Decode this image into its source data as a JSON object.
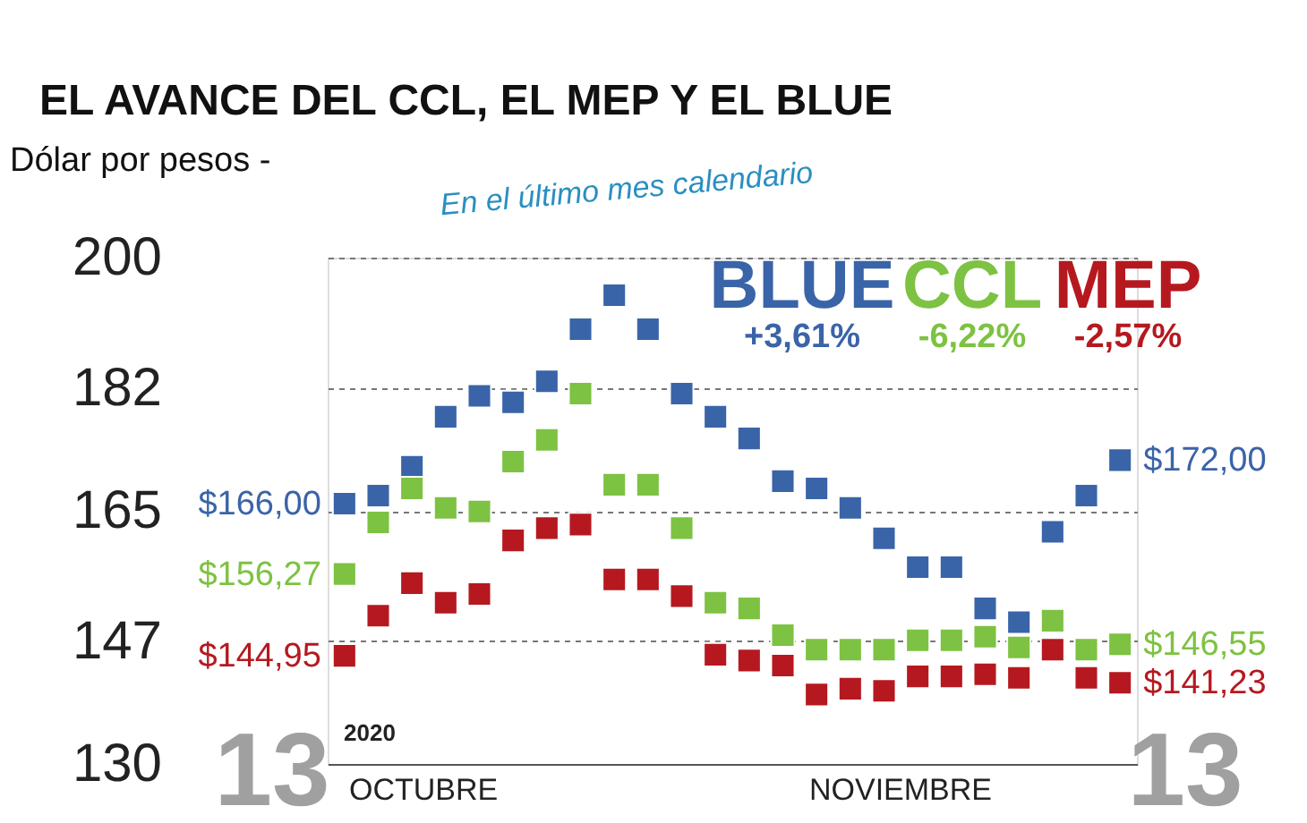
{
  "chart_data": {
    "type": "scatter",
    "title": "EL AVANCE DEL CCL, EL MEP Y EL BLUE",
    "ylabel": "Dólar por pesos -",
    "categories": [
      null,
      null,
      null,
      null,
      null,
      null,
      null,
      null,
      null,
      null,
      null,
      null,
      null,
      null,
      null,
      null,
      null,
      null,
      null,
      null,
      null,
      null,
      null,
      null
    ],
    "series": [
      {
        "name": "BLUE",
        "color": "#3a64a8",
        "values": [
          166.0,
          167.1,
          171.1,
          178.0,
          180.9,
          180.0,
          182.9,
          190.1,
          194.8,
          190.1,
          181.2,
          178.0,
          175.0,
          169.1,
          168.1,
          165.4,
          161.2,
          157.2,
          157.2,
          151.5,
          149.6,
          162.1,
          167.1,
          172.0
        ],
        "value_labels": [
          "$166,00",
          null,
          null,
          null,
          null,
          null,
          null,
          null,
          null,
          null,
          null,
          null,
          null,
          null,
          null,
          null,
          null,
          null,
          null,
          null,
          null,
          null,
          null,
          "$172,00"
        ]
      },
      {
        "name": "CCL",
        "color": "#7dc242",
        "values": [
          156.27,
          163.4,
          168.1,
          165.4,
          164.9,
          171.8,
          174.8,
          181.2,
          168.6,
          168.6,
          162.6,
          152.3,
          151.5,
          147.8,
          145.8,
          145.8,
          145.8,
          147.1,
          147.1,
          147.6,
          146.1,
          149.8,
          145.8,
          146.55
        ],
        "value_labels": [
          "$156,27",
          null,
          null,
          null,
          null,
          null,
          null,
          null,
          null,
          null,
          null,
          null,
          null,
          null,
          null,
          null,
          null,
          null,
          null,
          null,
          null,
          null,
          null,
          "$146,55"
        ]
      },
      {
        "name": "MEP",
        "color": "#b5191f",
        "values": [
          144.95,
          150.5,
          155.0,
          152.3,
          153.5,
          160.9,
          162.6,
          163.1,
          155.5,
          155.5,
          153.2,
          145.1,
          144.3,
          143.6,
          139.6,
          140.4,
          140.1,
          142.1,
          142.1,
          142.4,
          141.9,
          145.8,
          141.9,
          141.23
        ],
        "value_labels": [
          "$144,95",
          null,
          null,
          null,
          null,
          null,
          null,
          null,
          null,
          null,
          null,
          null,
          null,
          null,
          null,
          null,
          null,
          null,
          null,
          null,
          null,
          null,
          null,
          "$141,23"
        ]
      }
    ],
    "ylim": [
      130,
      200
    ],
    "yticks": [
      130,
      147,
      165,
      182,
      200
    ],
    "grid": "y",
    "marker": "square",
    "legend": "top right",
    "annotations": [
      "En el último mes calendario",
      "+3,61%",
      "-6,22%",
      "-2,57%",
      "2020",
      "OCTUBRE",
      "NOVIEMBRE",
      "13",
      "13"
    ]
  }
}
